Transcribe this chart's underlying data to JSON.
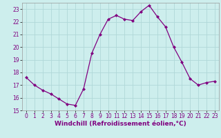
{
  "x": [
    0,
    1,
    2,
    3,
    4,
    5,
    6,
    7,
    8,
    9,
    10,
    11,
    12,
    13,
    14,
    15,
    16,
    17,
    18,
    19,
    20,
    21,
    22,
    23
  ],
  "y": [
    17.6,
    17.0,
    16.6,
    16.3,
    15.9,
    15.5,
    15.4,
    16.7,
    19.5,
    21.0,
    22.2,
    22.5,
    22.2,
    22.1,
    22.8,
    23.3,
    22.4,
    21.6,
    20.0,
    18.8,
    17.5,
    17.0,
    17.2,
    17.3
  ],
  "line_color": "#800080",
  "marker": "D",
  "marker_size": 2.0,
  "xlabel": "Windchill (Refroidissement éolien,°C)",
  "ylim": [
    15,
    23.5
  ],
  "xlim": [
    -0.5,
    23.5
  ],
  "yticks": [
    15,
    16,
    17,
    18,
    19,
    20,
    21,
    22,
    23
  ],
  "xticks": [
    0,
    1,
    2,
    3,
    4,
    5,
    6,
    7,
    8,
    9,
    10,
    11,
    12,
    13,
    14,
    15,
    16,
    17,
    18,
    19,
    20,
    21,
    22,
    23
  ],
  "bg_color": "#cdeeed",
  "grid_color": "#b0d8d8",
  "figsize": [
    3.2,
    2.0
  ],
  "dpi": 100,
  "tick_fontsize": 5.5,
  "xlabel_fontsize": 6.5,
  "line_width": 0.9
}
